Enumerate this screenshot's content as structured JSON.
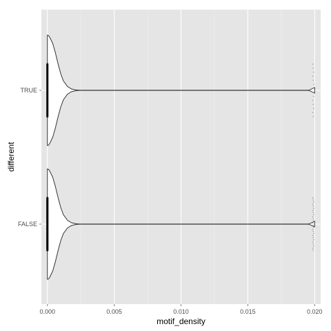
{
  "chart_data": {
    "type": "violin",
    "orientation": "horizontal",
    "xlabel": "motif_density",
    "ylabel": "different",
    "xlim": [
      -0.00045,
      0.02045
    ],
    "x_ticks": [
      0.0,
      0.005,
      0.01,
      0.015,
      0.02
    ],
    "x_tick_labels": [
      "0.000",
      "0.005",
      "0.010",
      "0.015",
      "0.020"
    ],
    "categories": [
      "TRUE",
      "FALSE"
    ],
    "grid": true,
    "legend": "none",
    "colors": {
      "panel": "#e5e5e5",
      "grid_major": "#ffffff",
      "grid_minor": "#f2f2f2",
      "violin_fill": "#ffffff",
      "violin_outline": "#333333",
      "points": "#000000"
    },
    "series": [
      {
        "name": "TRUE",
        "density_profile": {
          "x": [
            0.0,
            0.0001,
            0.0002,
            0.0004,
            0.0006,
            0.0008,
            0.001,
            0.0012,
            0.0015,
            0.0018,
            0.0021,
            0.0024,
            0.003,
            0.0195,
            0.0197,
            0.0199,
            0.02
          ],
          "half_width": [
            1.0,
            0.99,
            0.95,
            0.85,
            0.68,
            0.48,
            0.3,
            0.17,
            0.07,
            0.025,
            0.008,
            0.002,
            0.001,
            0.001,
            0.015,
            0.04,
            0.05
          ]
        },
        "point_clusters": [
          {
            "x": 0.0,
            "count": 60,
            "spread": 0.5
          },
          {
            "x": 0.0199,
            "count": 14,
            "spread": 0.5
          }
        ]
      },
      {
        "name": "FALSE",
        "density_profile": {
          "x": [
            0.0,
            0.0001,
            0.0002,
            0.0004,
            0.0006,
            0.0008,
            0.001,
            0.0012,
            0.0015,
            0.0018,
            0.0021,
            0.0024,
            0.003,
            0.0195,
            0.0197,
            0.0199,
            0.02
          ],
          "half_width": [
            1.0,
            0.99,
            0.95,
            0.85,
            0.68,
            0.48,
            0.3,
            0.17,
            0.07,
            0.025,
            0.008,
            0.002,
            0.001,
            0.001,
            0.015,
            0.04,
            0.05
          ]
        },
        "point_clusters": [
          {
            "x": 0.0,
            "count": 75,
            "spread": 0.5
          },
          {
            "x": 0.0199,
            "count": 26,
            "spread": 0.5
          }
        ]
      }
    ]
  }
}
